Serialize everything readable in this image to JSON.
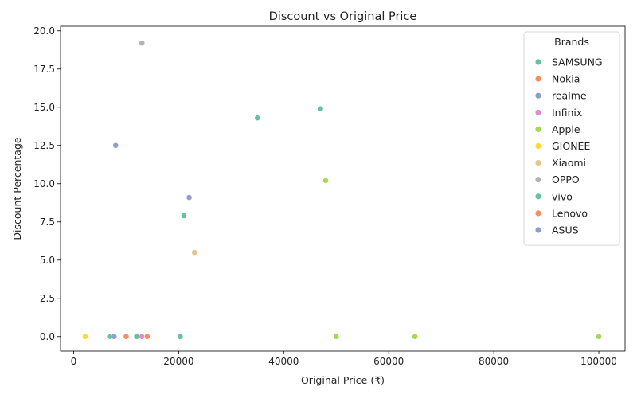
{
  "chart_data": {
    "type": "scatter",
    "title": "Discount vs Original Price",
    "xlabel": "Original Price (₹)",
    "ylabel": "Discount Percentage",
    "xlim": [
      -2500,
      105000
    ],
    "ylim": [
      -0.95,
      20.3
    ],
    "xticks": [
      0,
      20000,
      40000,
      60000,
      80000,
      100000
    ],
    "yticks": [
      0.0,
      2.5,
      5.0,
      7.5,
      10.0,
      12.5,
      15.0,
      17.5,
      20.0
    ],
    "grid": false,
    "legend": {
      "title": "Brands",
      "position": "top-right",
      "entries": [
        {
          "name": "SAMSUNG",
          "color": "#66c2a5"
        },
        {
          "name": "Nokia",
          "color": "#fc8d62"
        },
        {
          "name": "realme",
          "color": "#8da0cb"
        },
        {
          "name": "Infinix",
          "color": "#e78ac3"
        },
        {
          "name": "Apple",
          "color": "#a6d854"
        },
        {
          "name": "GIONEE",
          "color": "#ffd92f"
        },
        {
          "name": "Xiaomi",
          "color": "#e5c494"
        },
        {
          "name": "OPPO",
          "color": "#b3b3b3"
        },
        {
          "name": "vivo",
          "color": "#66c2a5"
        },
        {
          "name": "Lenovo",
          "color": "#fc8d62"
        },
        {
          "name": "ASUS",
          "color": "#8da0cb"
        }
      ]
    },
    "points": [
      {
        "brand": "OPPO",
        "x": 13000,
        "y": 19.2
      },
      {
        "brand": "SAMSUNG",
        "x": 47000,
        "y": 14.9
      },
      {
        "brand": "vivo",
        "x": 35000,
        "y": 14.3
      },
      {
        "brand": "realme",
        "x": 8000,
        "y": 12.5
      },
      {
        "brand": "Apple",
        "x": 48000,
        "y": 10.2
      },
      {
        "brand": "ASUS",
        "x": 22000,
        "y": 9.1
      },
      {
        "brand": "SAMSUNG",
        "x": 21000,
        "y": 7.9
      },
      {
        "brand": "Xiaomi",
        "x": 23000,
        "y": 5.5
      },
      {
        "brand": "GIONEE",
        "x": 2200,
        "y": 0.0
      },
      {
        "brand": "SAMSUNG",
        "x": 7000,
        "y": 0.0
      },
      {
        "brand": "realme",
        "x": 7700,
        "y": 0.0
      },
      {
        "brand": "Nokia",
        "x": 10000,
        "y": 0.0
      },
      {
        "brand": "SAMSUNG",
        "x": 12000,
        "y": 0.0
      },
      {
        "brand": "Infinix",
        "x": 13000,
        "y": 0.0
      },
      {
        "brand": "Lenovo",
        "x": 14000,
        "y": 0.0
      },
      {
        "brand": "vivo",
        "x": 20300,
        "y": 0.0
      },
      {
        "brand": "Apple",
        "x": 50000,
        "y": 0.0
      },
      {
        "brand": "Apple",
        "x": 65000,
        "y": 0.0
      },
      {
        "brand": "Apple",
        "x": 100000,
        "y": 0.0
      }
    ]
  }
}
